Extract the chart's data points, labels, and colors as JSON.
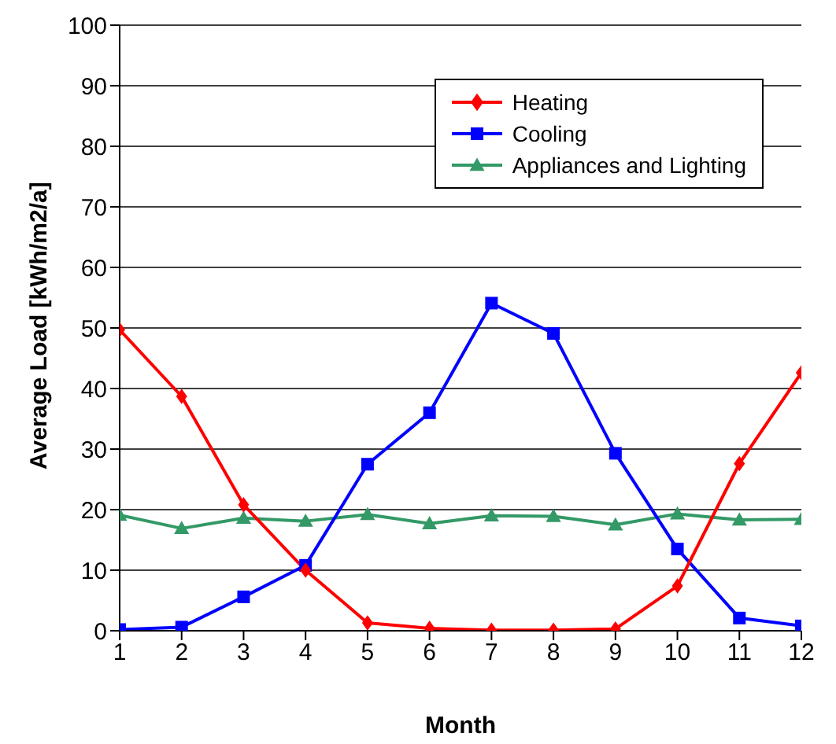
{
  "chart_data": {
    "type": "line",
    "xlabel": "Month",
    "ylabel": "Average Load [kWh/m2/a]",
    "x": [
      1,
      2,
      3,
      4,
      5,
      6,
      7,
      8,
      9,
      10,
      11,
      12
    ],
    "xlim": [
      1,
      12
    ],
    "xticks": [
      1,
      2,
      3,
      4,
      5,
      6,
      7,
      8,
      9,
      10,
      11,
      12
    ],
    "ylim": [
      0,
      100
    ],
    "yticks": [
      0,
      10,
      20,
      30,
      40,
      50,
      60,
      70,
      80,
      90,
      100
    ],
    "grid": "y",
    "legend": "top right",
    "line_style": "solid",
    "series": [
      {
        "name": "Heating",
        "color": "#ff0000",
        "marker": "diamond",
        "values": [
          49.7,
          38.7,
          20.8,
          10,
          1.3,
          0.4,
          0.1,
          0.1,
          0.3,
          7.4,
          27.6,
          42.6
        ]
      },
      {
        "name": "Cooling",
        "color": "#0000ff",
        "marker": "square",
        "values": [
          0.2,
          0.6,
          5.6,
          10.8,
          27.5,
          36,
          54.1,
          49.1,
          29.3,
          13.5,
          2.1,
          0.8
        ]
      },
      {
        "name": "Appliances and Lighting",
        "color": "#339966",
        "marker": "triangle",
        "values": [
          19.1,
          16.9,
          18.6,
          18.1,
          19.2,
          17.7,
          19,
          18.9,
          17.5,
          19.3,
          18.3,
          18.4
        ]
      }
    ]
  }
}
